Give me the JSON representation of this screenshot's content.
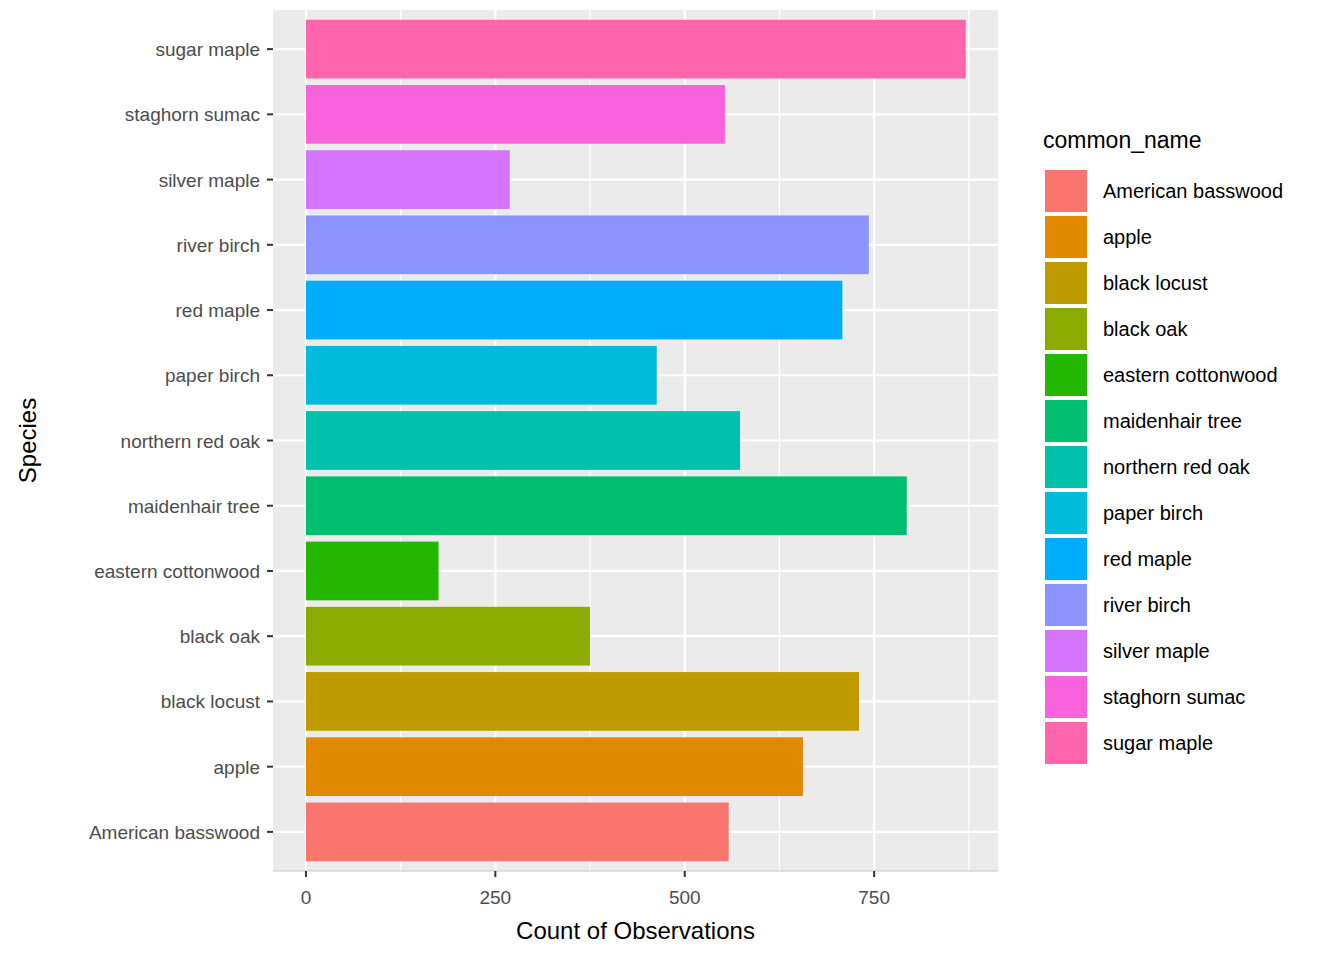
{
  "chart_data": {
    "type": "bar",
    "orientation": "horizontal",
    "xlabel": "Count of Observations",
    "ylabel": "Species",
    "legend_title": "common_name",
    "categories": [
      "American basswood",
      "apple",
      "black locust",
      "black oak",
      "eastern cottonwood",
      "maidenhair tree",
      "northern red oak",
      "paper birch",
      "red maple",
      "river birch",
      "silver maple",
      "staghorn sumac",
      "sugar maple"
    ],
    "values": [
      558,
      656,
      730,
      375,
      175,
      793,
      573,
      463,
      708,
      743,
      269,
      553,
      871
    ],
    "colors": [
      "#F8766D",
      "#E18A00",
      "#BE9C00",
      "#8CAB00",
      "#24B700",
      "#00BE70",
      "#00C1AB",
      "#00BBDA",
      "#00ACFC",
      "#8B93FF",
      "#D575FE",
      "#F962DD",
      "#FF65AC"
    ],
    "xlim": [
      -43.5,
      913.5
    ],
    "xticks": [
      0,
      250,
      500,
      750
    ],
    "grid": true,
    "legend": "right"
  }
}
